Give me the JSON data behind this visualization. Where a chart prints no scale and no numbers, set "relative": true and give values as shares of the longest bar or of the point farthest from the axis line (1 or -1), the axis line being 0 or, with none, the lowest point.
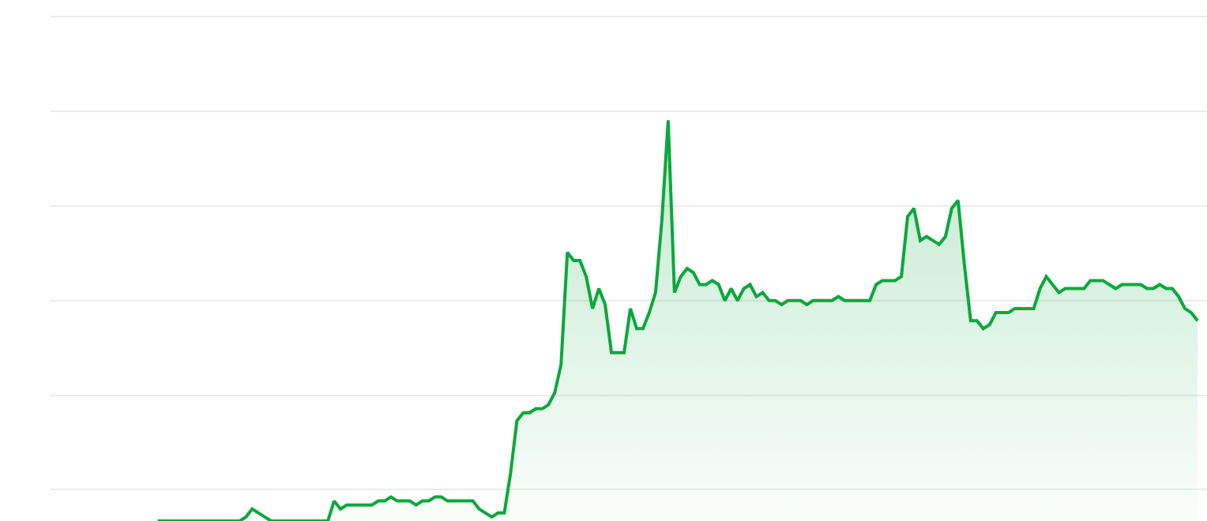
{
  "chart_data": {
    "type": "area",
    "relative": true,
    "grid": "y",
    "categories": [
      null,
      null,
      null,
      null,
      null,
      null,
      null,
      null,
      null,
      null,
      null,
      null,
      null,
      null,
      null,
      null,
      null,
      null,
      null,
      null,
      null,
      null,
      null,
      null,
      null,
      null,
      null,
      null,
      null,
      null,
      null,
      null,
      null,
      null,
      null,
      null,
      null,
      null,
      null,
      null,
      null,
      null,
      null,
      null,
      null,
      null,
      null,
      null,
      null,
      null,
      null,
      null,
      null,
      null,
      null,
      null,
      null,
      null,
      null,
      null,
      null,
      null,
      null,
      null,
      null,
      null,
      null,
      null,
      null,
      null,
      null,
      null,
      null,
      null,
      null,
      null,
      null,
      null,
      null,
      null,
      null,
      null,
      null,
      null,
      null,
      null,
      null,
      null,
      null,
      null,
      null,
      null,
      null,
      null,
      null,
      null,
      null,
      null,
      null,
      null,
      null,
      null,
      null,
      null,
      null,
      null,
      null,
      null,
      null,
      null,
      null,
      null,
      null,
      null,
      null,
      null,
      null,
      null,
      null,
      null,
      null,
      null,
      null,
      null,
      null,
      null,
      null,
      null,
      null,
      null,
      null,
      null,
      null,
      null,
      null,
      null,
      null,
      null,
      null,
      null,
      null,
      null,
      null,
      null,
      null,
      null,
      null,
      null,
      null,
      null,
      null,
      null,
      null,
      null,
      null,
      null,
      null,
      null,
      null,
      null,
      null,
      null,
      null,
      null,
      null,
      null
    ],
    "series": [
      {
        "color": "#0aa83c",
        "values": [
          0,
          0,
          0,
          0,
          0,
          0,
          0,
          0,
          0,
          0,
          0,
          0,
          0,
          0,
          0.01,
          0.03,
          0.02,
          0.01,
          0,
          0,
          0,
          0,
          0,
          0,
          0,
          0,
          0,
          0,
          0.05,
          0.03,
          0.04,
          0.04,
          0.04,
          0.04,
          0.04,
          0.05,
          0.05,
          0.06,
          0.05,
          0.05,
          0.05,
          0.04,
          0.05,
          0.05,
          0.06,
          0.06,
          0.05,
          0.05,
          0.05,
          0.05,
          0.05,
          0.03,
          0.02,
          0.01,
          0.02,
          0.02,
          0.12,
          0.25,
          0.27,
          0.27,
          0.28,
          0.28,
          0.29,
          0.32,
          0.39,
          0.67,
          0.65,
          0.65,
          0.61,
          0.53,
          0.58,
          0.54,
          0.42,
          0.42,
          0.42,
          0.53,
          0.48,
          0.48,
          0.52,
          0.57,
          0.75,
          1,
          0.57,
          0.61,
          0.63,
          0.62,
          0.59,
          0.59,
          0.6,
          0.59,
          0.55,
          0.58,
          0.55,
          0.58,
          0.59,
          0.56,
          0.57,
          0.55,
          0.55,
          0.54,
          0.55,
          0.55,
          0.55,
          0.54,
          0.55,
          0.55,
          0.55,
          0.55,
          0.56,
          0.55,
          0.55,
          0.55,
          0.55,
          0.55,
          0.59,
          0.6,
          0.6,
          0.6,
          0.61,
          0.76,
          0.78,
          0.7,
          0.71,
          0.7,
          0.69,
          0.71,
          0.78,
          0.8,
          0.64,
          0.5,
          0.5,
          0.48,
          0.49,
          0.52,
          0.52,
          0.52,
          0.53,
          0.53,
          0.53,
          0.53,
          0.58,
          0.61,
          0.59,
          0.57,
          0.58,
          0.58,
          0.58,
          0.58,
          0.6,
          0.6,
          0.6,
          0.59,
          0.58,
          0.59,
          0.59,
          0.59,
          0.59,
          0.58,
          0.58,
          0.59,
          0.58,
          0.58,
          0.56,
          0.53,
          0.52,
          0.5
        ]
      }
    ]
  }
}
